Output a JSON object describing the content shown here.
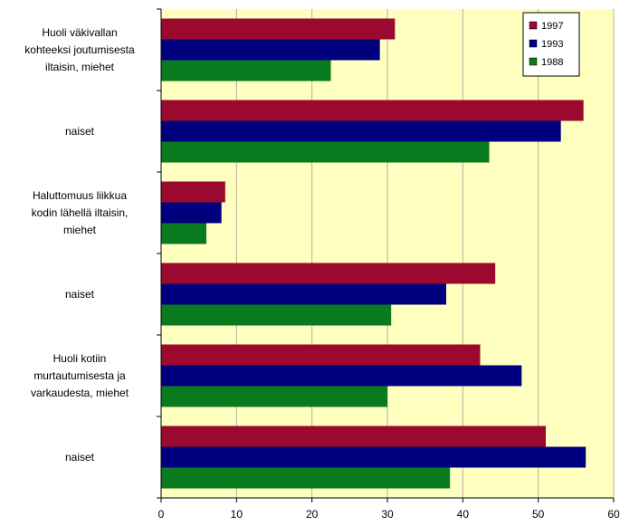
{
  "chart_data": {
    "type": "bar",
    "orientation": "horizontal",
    "categories": [
      [
        "Huoli väkivallan",
        "kohteeksi joutumisesta",
        "iltaisin, miehet"
      ],
      [
        "naiset"
      ],
      [
        "Haluttomuus liikkua",
        "kodin lähellä iltaisin,",
        "miehet"
      ],
      [
        "naiset"
      ],
      [
        "Huoli kotiin",
        "murtautumisesta ja",
        "varkaudesta, miehet"
      ],
      [
        "naiset"
      ]
    ],
    "series": [
      {
        "name": "1997",
        "color": "#9b0a2e",
        "values": [
          31,
          56,
          8.5,
          44.3,
          42.3,
          51
        ]
      },
      {
        "name": "1993",
        "color": "#00007f",
        "values": [
          29,
          53,
          8,
          37.8,
          47.8,
          56.3
        ]
      },
      {
        "name": "1988",
        "color": "#0a7a1e",
        "values": [
          22.5,
          43.5,
          6,
          30.5,
          30,
          38.3
        ]
      }
    ],
    "xlim": [
      0,
      60
    ],
    "xticks": [
      "0",
      "10",
      "20",
      "30",
      "40",
      "50",
      "60"
    ],
    "grid": true,
    "legend_position": "top-right",
    "plot_background": "#ffffc0"
  }
}
